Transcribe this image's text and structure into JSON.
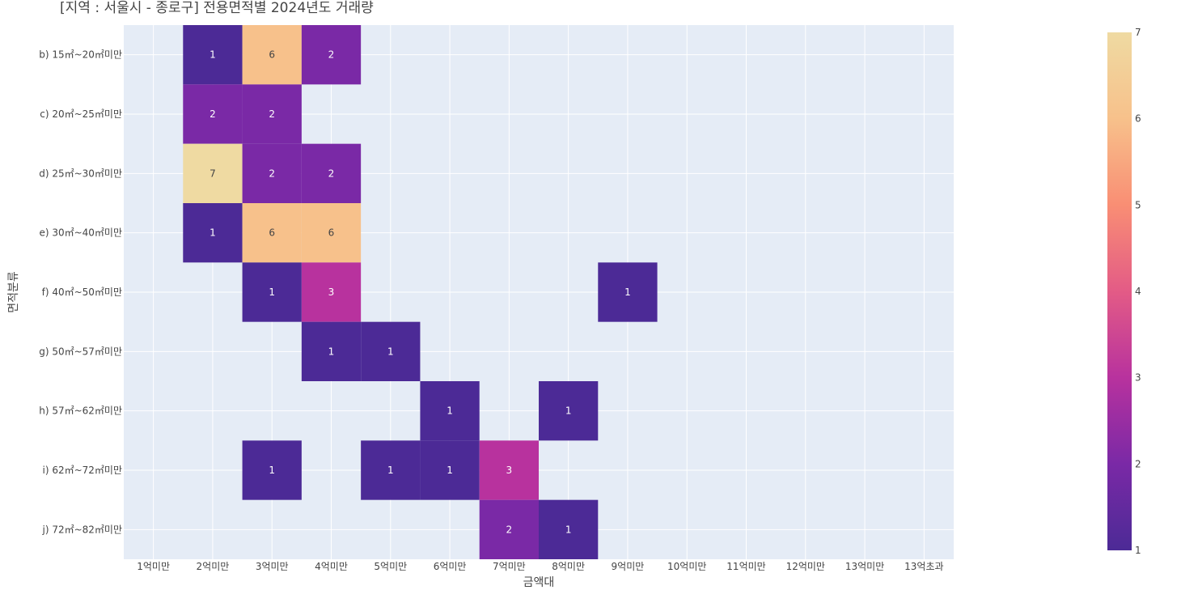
{
  "chart_data": {
    "type": "heatmap",
    "title": "[지역 : 서울시 - 종로구] 전용면적별 2024년도 거래량",
    "xlabel": "금액대",
    "ylabel": "면적분류",
    "x_categories": [
      "1억미만",
      "2억미만",
      "3억미만",
      "4억미만",
      "5억미만",
      "6억미만",
      "7억미만",
      "8억미만",
      "9억미만",
      "10억미만",
      "11억미만",
      "12억미만",
      "13억미만",
      "13억초과"
    ],
    "y_categories": [
      "b) 15㎡~20㎡미만",
      "c) 20㎡~25㎡미만",
      "d) 25㎡~30㎡미만",
      "e) 30㎡~40㎡미만",
      "f) 40㎡~50㎡미만",
      "g) 50㎡~57㎡미만",
      "h) 57㎡~62㎡미만",
      "i) 62㎡~72㎡미만",
      "j) 72㎡~82㎡미만"
    ],
    "z": [
      [
        null,
        1,
        6,
        2,
        null,
        null,
        null,
        null,
        null,
        null,
        null,
        null,
        null,
        null
      ],
      [
        null,
        2,
        2,
        null,
        null,
        null,
        null,
        null,
        null,
        null,
        null,
        null,
        null,
        null
      ],
      [
        null,
        7,
        2,
        2,
        null,
        null,
        null,
        null,
        null,
        null,
        null,
        null,
        null,
        null
      ],
      [
        null,
        1,
        6,
        6,
        null,
        null,
        null,
        null,
        null,
        null,
        null,
        null,
        null,
        null
      ],
      [
        null,
        null,
        1,
        3,
        null,
        null,
        null,
        null,
        1,
        null,
        null,
        null,
        null,
        null
      ],
      [
        null,
        null,
        null,
        1,
        1,
        null,
        null,
        null,
        null,
        null,
        null,
        null,
        null,
        null
      ],
      [
        null,
        null,
        null,
        null,
        null,
        1,
        null,
        1,
        null,
        null,
        null,
        null,
        null,
        null
      ],
      [
        null,
        null,
        1,
        null,
        1,
        1,
        3,
        null,
        null,
        null,
        null,
        null,
        null,
        null
      ],
      [
        null,
        null,
        null,
        null,
        null,
        null,
        2,
        1,
        null,
        null,
        null,
        null,
        null,
        null
      ]
    ],
    "zmin": 1,
    "zmax": 7,
    "colorscale": "plasma (plotly_dark-ish)",
    "colorbar_ticks": [
      1,
      2,
      3,
      4,
      5,
      6,
      7
    ],
    "colors": {
      "plot_bg": "#e5ecf6",
      "grid": "#ffffff",
      "scale": [
        "#4c2a96",
        "#7a29a6",
        "#b8329e",
        "#e35b86",
        "#f98e74",
        "#f7c18b",
        "#efdaa2"
      ]
    }
  }
}
